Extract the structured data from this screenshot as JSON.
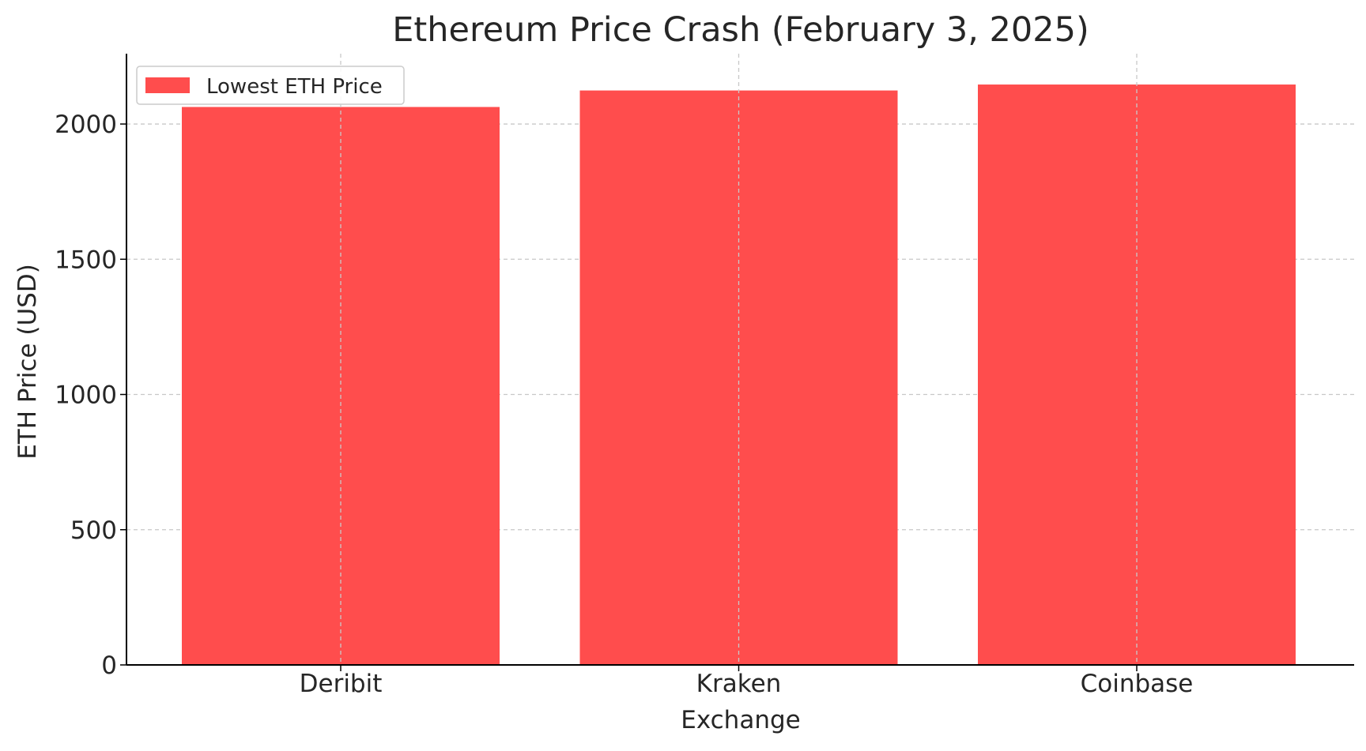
{
  "chart_data": {
    "type": "bar",
    "title": "Ethereum Price Crash (February 3, 2025)",
    "xlabel": "Exchange",
    "ylabel": "ETH Price (USD)",
    "categories": [
      "Deribit",
      "Kraken",
      "Coinbase"
    ],
    "series": [
      {
        "name": "Lowest ETH Price",
        "values": [
          2063,
          2124,
          2146
        ],
        "color": "#ff4d4d"
      }
    ],
    "ylim": [
      0,
      2260
    ],
    "yticks": [
      0,
      500,
      1000,
      1500,
      2000
    ],
    "grid": true,
    "legend_position": "top-left"
  }
}
